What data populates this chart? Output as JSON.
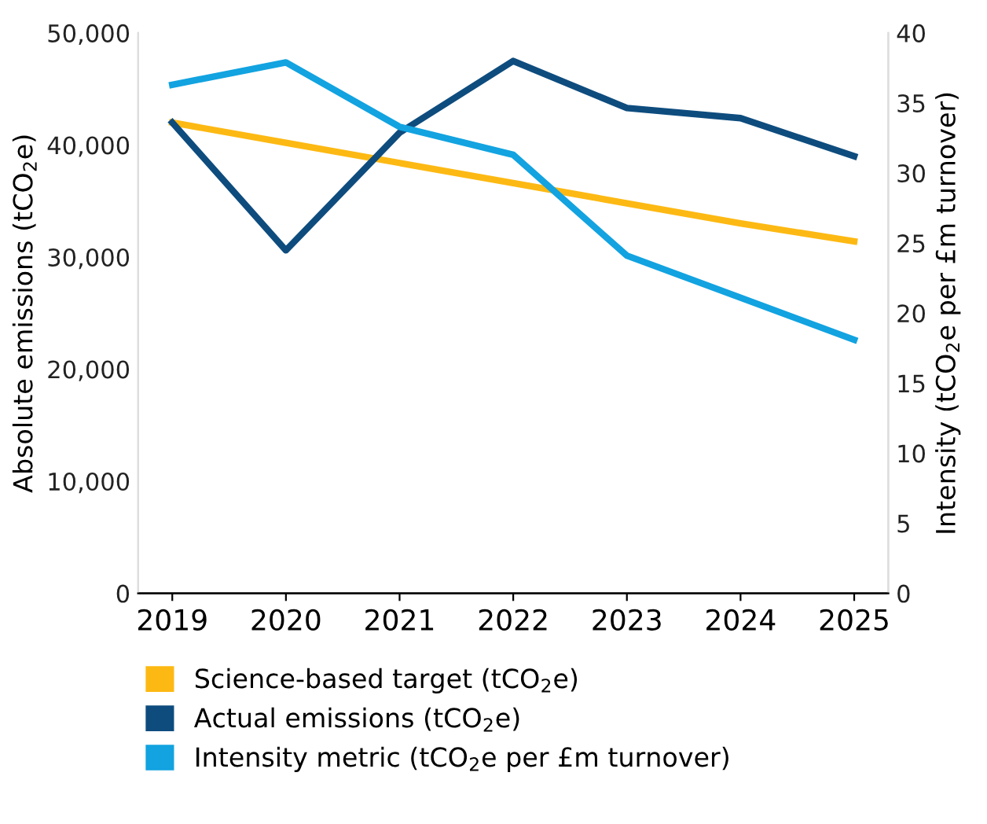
{
  "chart_data": {
    "type": "line",
    "categories": [
      "2019",
      "2020",
      "2021",
      "2022",
      "2023",
      "2024",
      "2025"
    ],
    "ylabel": "Absolute emissions (tCO$_{2}$e)",
    "y2label": "Intensity (tCO$_{2}$e per £m turnover)",
    "ylim": [
      0,
      50000
    ],
    "yticks": [
      0,
      {
        "value": 10000,
        "label": "10,000"
      },
      {
        "value": 20000,
        "label": "20,000"
      },
      {
        "value": 30000,
        "label": "30,000"
      },
      {
        "value": 40000,
        "label": "40,000"
      },
      {
        "value": 50000,
        "label": "50,000"
      }
    ],
    "y2lim": [
      0,
      40
    ],
    "y2ticks": [
      0,
      5,
      10,
      15,
      20,
      25,
      30,
      35,
      40
    ],
    "series": [
      {
        "name": "Science-based target (tCO$_{2}$e)",
        "color": "#fdb913",
        "values": [
          42000,
          40200,
          38400,
          36600,
          34800,
          33000,
          31400
        ]
      },
      {
        "name": "Actual emissions (tCO$_{2}$e)",
        "color": "#0e4c7e",
        "values": [
          42000,
          30600,
          41100,
          47500,
          43300,
          42400,
          39000
        ]
      },
      {
        "name": "Intensity metric (tCO$_{2}$e per £m turnover)",
        "color": "#12a3e0",
        "axis": "y2",
        "values": [
          36.3,
          37.9,
          33.3,
          31.3,
          24.1,
          21.1,
          18.1
        ]
      }
    ],
    "grid": false,
    "legend": "bottom",
    "marker": "none",
    "line_style": "solid"
  }
}
